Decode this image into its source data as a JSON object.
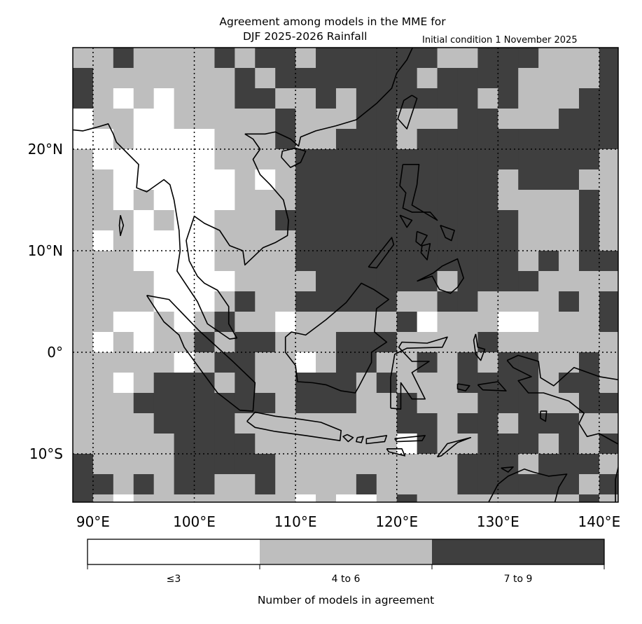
{
  "title": {
    "line1": "Agreement among models in the MME for",
    "line2": "DJF 2025-2026  Rainfall",
    "initial_condition": "Initial condition 1 November 2025"
  },
  "map": {
    "lon_range": [
      88,
      141.8
    ],
    "lat_range": [
      -14.8,
      29.9
    ],
    "lon_ticks": [
      90,
      100,
      110,
      120,
      130,
      140
    ],
    "lon_labels": [
      "90°E",
      "100°E",
      "110°E",
      "120°E",
      "130°E",
      "140°E"
    ],
    "lat_ticks": [
      20,
      10,
      0,
      -10
    ],
    "lat_labels": [
      "20°N",
      "10°N",
      "0°",
      "10°S"
    ],
    "gridlines": "dotted",
    "cell_size_deg": 2,
    "grid_origin": {
      "lon": 88,
      "lat": 30
    },
    "agreement_rows": [
      "112111121221222222112221112",
      "211111112122222221222211112",
      "210101112211212222221211122",
      "011001111121112211122111222",
      "001000011121122212222222222",
      "100000011112222222222222221",
      "110000001012222222222122211",
      "110100001112222222222111121",
      "111010011122222222222211121",
      "101000011112222222222211121",
      "111000011112222222222212122",
      "111100001111222222122221111",
      "111100012112222211221111212",
      "110010121101111120111001112",
      "101011212211122211112111111",
      "111110122110122112121221121",
      "110122212112221211122221221",
      "111222222212221121112221122",
      "111122221111111122122122211",
      "111112222111111102112221212",
      "211112222211111111122212221",
      "221212211211112111122222212",
      "210111111110100121111111121"
    ]
  },
  "colorbar": {
    "categories": [
      "≤3",
      "4 to 6",
      "7 to 9"
    ],
    "colors": [
      "#ffffff",
      "#bebebe",
      "#3f3f3f"
    ],
    "label": "Number of models in agreement"
  }
}
